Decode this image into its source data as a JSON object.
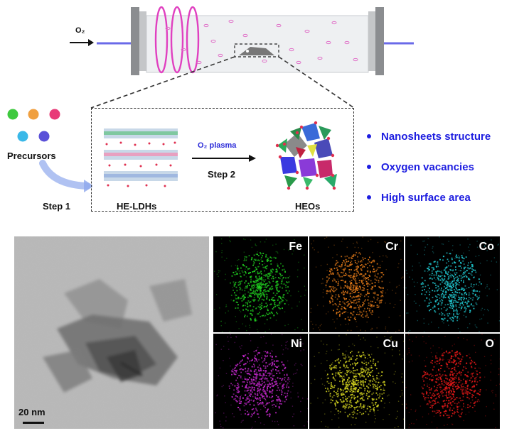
{
  "reactor": {
    "gas_label": "O₂"
  },
  "left": {
    "precursors_label": "Precursors",
    "step1_label": "Step 1"
  },
  "zoom": {
    "ldh_label": "HE-LDHs",
    "plasma_label": "O₂ plasma",
    "step2_label": "Step 2",
    "heo_label": "HEOs"
  },
  "features": [
    "Nanosheets structure",
    "Oxygen vacancies",
    "High surface area"
  ],
  "tem": {
    "scale_label": "20 nm"
  },
  "eds_maps": [
    {
      "element": "Fe",
      "color": "#20d020"
    },
    {
      "element": "Cr",
      "color": "#e07818"
    },
    {
      "element": "Co",
      "color": "#20c8d0"
    },
    {
      "element": "Ni",
      "color": "#c828d0"
    },
    {
      "element": "Cu",
      "color": "#d8d820"
    },
    {
      "element": "O",
      "color": "#e01818"
    }
  ],
  "colors": {
    "plasma_coil": "#e040c0",
    "gas_line": "#6a6ae8",
    "feature_text": "#1d1de0",
    "precursor_dots": [
      "#3ec93e",
      "#f0a040",
      "#e83a78",
      "#3ab8e8",
      "#5a50d8"
    ]
  }
}
